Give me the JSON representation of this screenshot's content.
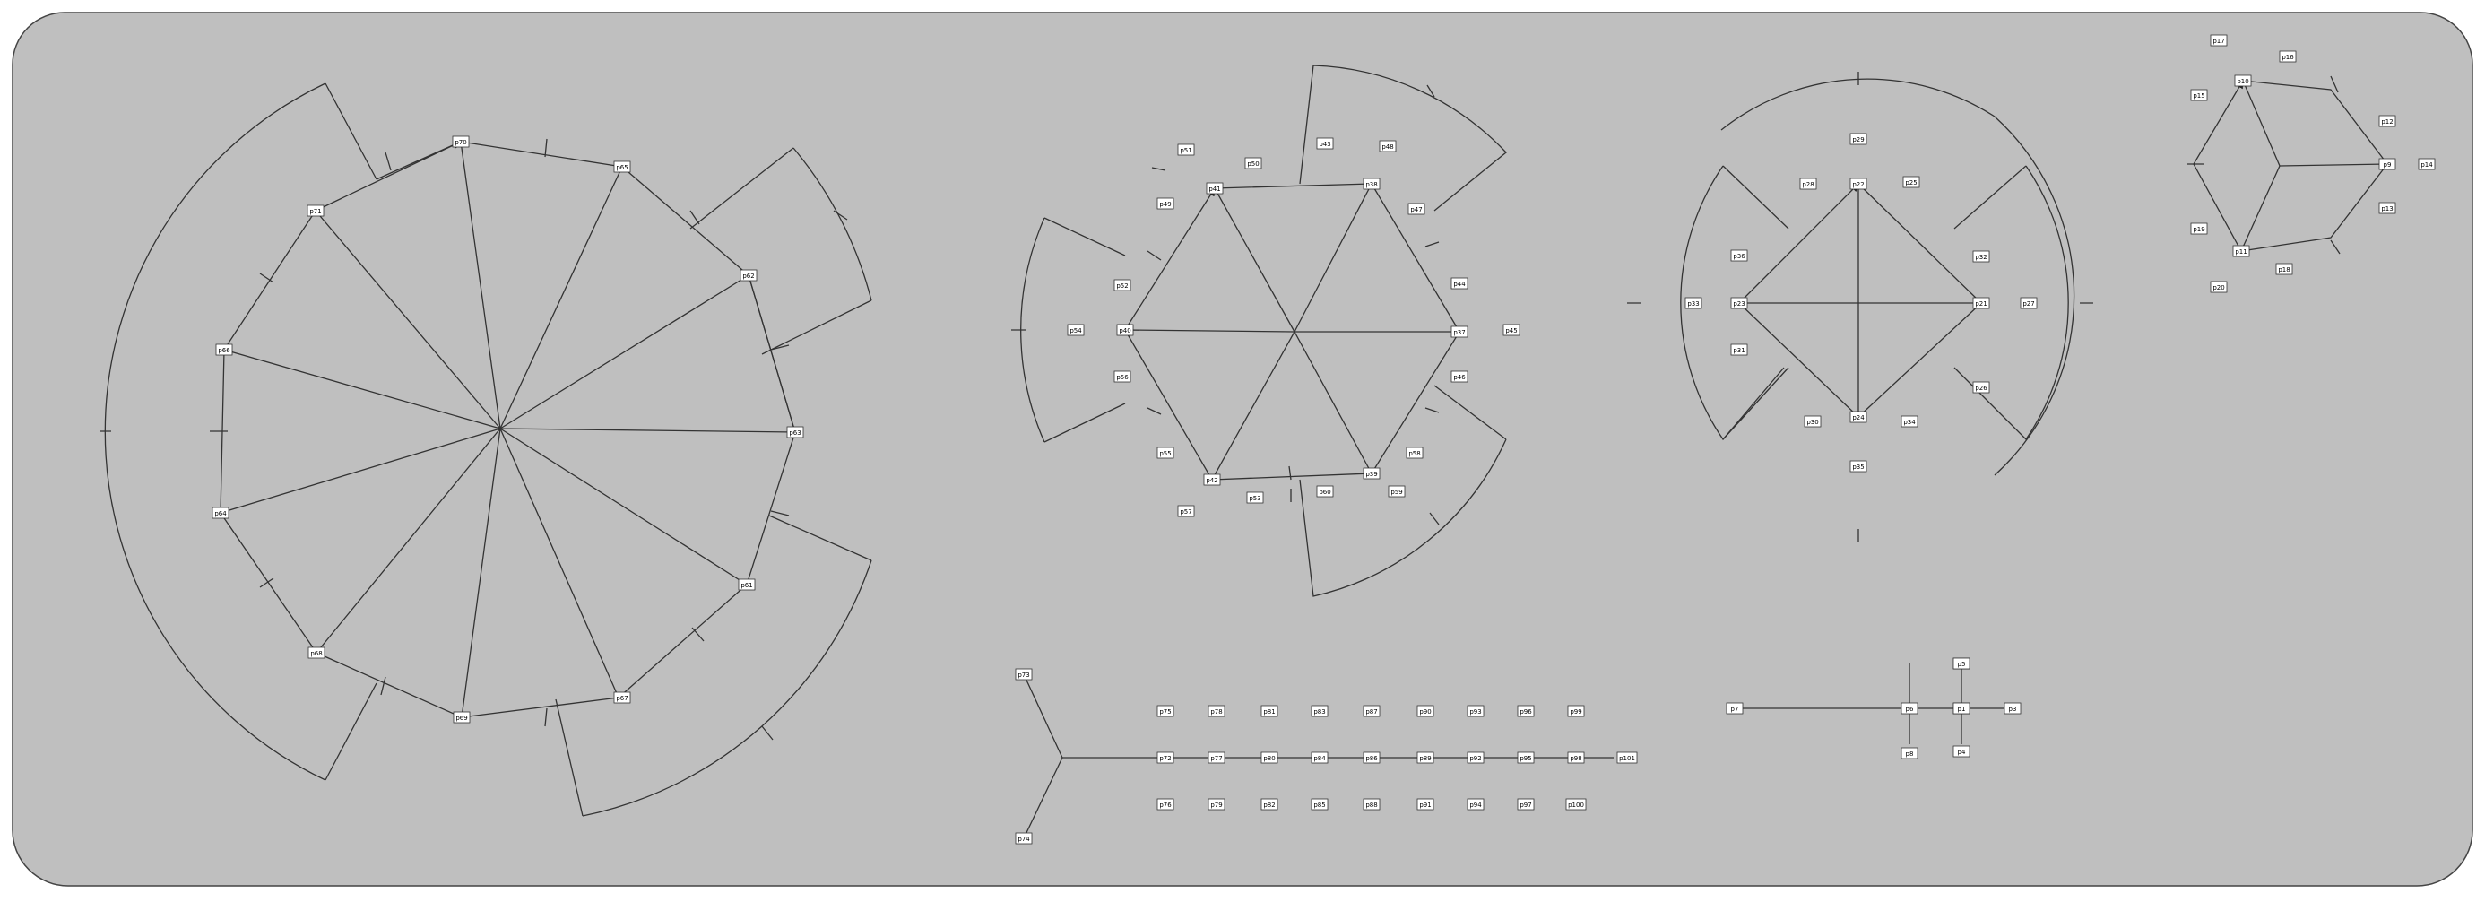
{
  "colors": {
    "panel_fill": "#bfbfbf",
    "stroke": "#333333",
    "node_fill": "#ffffff",
    "text": "#000000"
  },
  "nodes": [
    "p0",
    "p1",
    "p2",
    "p3",
    "p4",
    "p5",
    "p6",
    "p7",
    "p8",
    "p9",
    "p10",
    "p11",
    "p12",
    "p13",
    "p14",
    "p15",
    "p16",
    "p17",
    "p18",
    "p19",
    "p20",
    "p21",
    "p22",
    "p23",
    "p24",
    "p25",
    "p26",
    "p27",
    "p28",
    "p29",
    "p30",
    "p31",
    "p32",
    "p33",
    "p34",
    "p35",
    "p36",
    "p37",
    "p38",
    "p39",
    "p40",
    "p41",
    "p42",
    "p43",
    "p44",
    "p45",
    "p46",
    "p47",
    "p48",
    "p49",
    "p50",
    "p51",
    "p52",
    "p53",
    "p54",
    "p55",
    "p56",
    "p57",
    "p58",
    "p59",
    "p60",
    "p61",
    "p62",
    "p63",
    "p64",
    "p65",
    "p66",
    "p67",
    "p68",
    "p69",
    "p70",
    "p71",
    "p72",
    "p73",
    "p74",
    "p75",
    "p76",
    "p77",
    "p78",
    "p79",
    "p80",
    "p81",
    "p82",
    "p83",
    "p84",
    "p85",
    "p86",
    "p87",
    "p88",
    "p89",
    "p90",
    "p91",
    "p92",
    "p93",
    "p94",
    "p95",
    "p96",
    "p97",
    "p98",
    "p99",
    "p100",
    "p101"
  ]
}
